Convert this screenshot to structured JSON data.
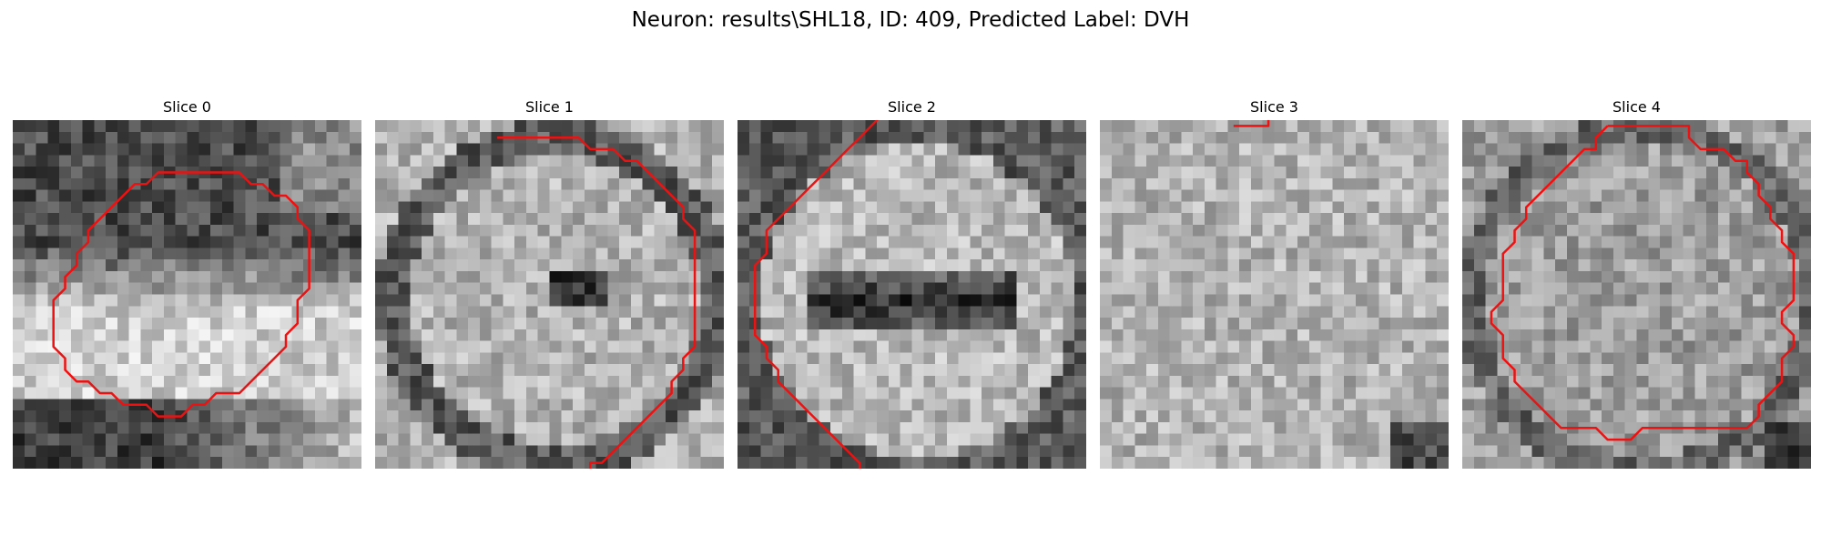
{
  "figure": {
    "title": "Neuron: results\\SHL18, ID: 409, Predicted Label: DVH"
  },
  "panels": [
    {
      "title": "Slice 0",
      "image": "grayscale-slice-0",
      "seed": 11,
      "dark": "top",
      "contour": [
        [
          16.5,
          4.5
        ],
        [
          19.5,
          4.5
        ],
        [
          20.5,
          5.5
        ],
        [
          21.5,
          5.5
        ],
        [
          22.5,
          6.5
        ],
        [
          23.5,
          6.5
        ],
        [
          24.5,
          7.5
        ],
        [
          24.5,
          8.5
        ],
        [
          25.5,
          9.5
        ],
        [
          25.5,
          11.5
        ],
        [
          25.5,
          14.5
        ],
        [
          24.5,
          15.5
        ],
        [
          24.5,
          17.5
        ],
        [
          23.5,
          18.5
        ],
        [
          23.5,
          19.5
        ],
        [
          22.5,
          20.5
        ],
        [
          21.5,
          21.5
        ],
        [
          20.5,
          22.5
        ],
        [
          19.5,
          23.5
        ],
        [
          18.5,
          23.5
        ],
        [
          17.5,
          23.5
        ],
        [
          16.5,
          24.5
        ],
        [
          15.5,
          24.5
        ],
        [
          14.5,
          25.5
        ],
        [
          12.5,
          25.5
        ],
        [
          11.5,
          24.5
        ],
        [
          9.5,
          24.5
        ],
        [
          8.5,
          23.5
        ],
        [
          7.5,
          23.5
        ],
        [
          6.5,
          22.5
        ],
        [
          5.5,
          22.5
        ],
        [
          4.5,
          21.5
        ],
        [
          4.5,
          20.5
        ],
        [
          3.5,
          19.5
        ],
        [
          3.5,
          17.5
        ],
        [
          3.5,
          15.5
        ],
        [
          4.5,
          14.5
        ],
        [
          4.5,
          13.5
        ],
        [
          5.5,
          12.5
        ],
        [
          5.5,
          11.5
        ],
        [
          6.5,
          10.5
        ],
        [
          6.5,
          9.5
        ],
        [
          7.5,
          8.5
        ],
        [
          8.5,
          7.5
        ],
        [
          9.5,
          6.5
        ],
        [
          10.5,
          5.5
        ],
        [
          11.5,
          5.5
        ],
        [
          12.5,
          4.5
        ],
        [
          16.5,
          4.5
        ]
      ]
    },
    {
      "title": "Slice 1",
      "image": "grayscale-slice-1",
      "seed": 23,
      "dark": "center",
      "contour": [
        [
          10.5,
          1.5
        ],
        [
          17.5,
          1.5
        ],
        [
          18.5,
          2.5
        ],
        [
          19.5,
          2.5
        ],
        [
          20.5,
          2.5
        ],
        [
          21.5,
          3.5
        ],
        [
          22.5,
          3.5
        ],
        [
          23.5,
          4.5
        ],
        [
          24.5,
          5.5
        ],
        [
          25.5,
          6.5
        ],
        [
          26.5,
          7.5
        ],
        [
          26.5,
          8.5
        ],
        [
          27.5,
          9.5
        ],
        [
          27.5,
          19.5
        ],
        [
          26.5,
          20.5
        ],
        [
          26.5,
          21.5
        ],
        [
          25.5,
          22.5
        ],
        [
          25.5,
          23.5
        ],
        [
          24.5,
          24.5
        ],
        [
          23.5,
          25.5
        ],
        [
          22.5,
          26.5
        ],
        [
          21.5,
          27.5
        ],
        [
          20.5,
          28.5
        ],
        [
          19.5,
          29.5
        ],
        [
          18.5,
          29.5
        ],
        [
          18.5,
          30.5
        ]
      ]
    },
    {
      "title": "Slice 2",
      "image": "grayscale-slice-2",
      "seed": 37,
      "dark": "band",
      "contour": [
        [
          12.5,
          -0.5
        ],
        [
          11.5,
          0.5
        ],
        [
          10.5,
          1.5
        ],
        [
          9.5,
          2.5
        ],
        [
          8.5,
          3.5
        ],
        [
          7.5,
          4.5
        ],
        [
          6.5,
          5.5
        ],
        [
          5.5,
          6.5
        ],
        [
          4.5,
          7.5
        ],
        [
          3.5,
          8.5
        ],
        [
          2.5,
          9.5
        ],
        [
          2.5,
          11.5
        ],
        [
          1.5,
          12.5
        ],
        [
          1.5,
          18.5
        ],
        [
          2.5,
          19.5
        ],
        [
          2.5,
          20.5
        ],
        [
          3.5,
          21.5
        ],
        [
          3.5,
          22.5
        ],
        [
          4.5,
          23.5
        ],
        [
          5.5,
          24.5
        ],
        [
          6.5,
          25.5
        ],
        [
          7.5,
          26.5
        ],
        [
          8.5,
          27.5
        ],
        [
          9.5,
          28.5
        ],
        [
          10.5,
          29.5
        ],
        [
          10.5,
          30.5
        ]
      ]
    },
    {
      "title": "Slice 3",
      "image": "grayscale-slice-3",
      "seed": 53,
      "dark": "none",
      "contour": [
        [
          11.5,
          0.5
        ],
        [
          14.5,
          0.5
        ],
        [
          14.5,
          -0.5
        ]
      ]
    },
    {
      "title": "Slice 4",
      "image": "grayscale-slice-4",
      "seed": 71,
      "dark": "corner",
      "contour": [
        [
          12.5,
          0.5
        ],
        [
          19.5,
          0.5
        ],
        [
          19.5,
          1.5
        ],
        [
          20.5,
          2.5
        ],
        [
          22.5,
          2.5
        ],
        [
          23.5,
          3.5
        ],
        [
          24.5,
          3.5
        ],
        [
          24.5,
          4.5
        ],
        [
          25.5,
          5.5
        ],
        [
          25.5,
          6.5
        ],
        [
          26.5,
          7.5
        ],
        [
          26.5,
          8.5
        ],
        [
          27.5,
          9.5
        ],
        [
          27.5,
          10.5
        ],
        [
          28.5,
          11.5
        ],
        [
          28.5,
          15.5
        ],
        [
          27.5,
          16.5
        ],
        [
          27.5,
          17.5
        ],
        [
          28.5,
          18.5
        ],
        [
          28.5,
          19.5
        ],
        [
          27.5,
          20.5
        ],
        [
          27.5,
          22.5
        ],
        [
          26.5,
          23.5
        ],
        [
          25.5,
          24.5
        ],
        [
          25.5,
          25.5
        ],
        [
          24.5,
          26.5
        ],
        [
          15.5,
          26.5
        ],
        [
          14.5,
          27.5
        ],
        [
          12.5,
          27.5
        ],
        [
          11.5,
          26.5
        ],
        [
          8.5,
          26.5
        ],
        [
          7.5,
          25.5
        ],
        [
          6.5,
          24.5
        ],
        [
          5.5,
          23.5
        ],
        [
          4.5,
          22.5
        ],
        [
          4.5,
          21.5
        ],
        [
          3.5,
          20.5
        ],
        [
          3.5,
          18.5
        ],
        [
          2.5,
          17.5
        ],
        [
          2.5,
          16.5
        ],
        [
          3.5,
          15.5
        ],
        [
          3.5,
          13.5
        ],
        [
          3.5,
          11.5
        ],
        [
          4.5,
          10.5
        ],
        [
          4.5,
          9.5
        ],
        [
          5.5,
          8.5
        ],
        [
          5.5,
          7.5
        ],
        [
          6.5,
          6.5
        ],
        [
          7.5,
          5.5
        ],
        [
          8.5,
          4.5
        ],
        [
          9.5,
          3.5
        ],
        [
          10.5,
          2.5
        ],
        [
          11.5,
          2.5
        ],
        [
          11.5,
          1.5
        ],
        [
          12.5,
          0.5
        ]
      ]
    }
  ],
  "colors": {
    "contour": "#ee1111",
    "background": "#ffffff"
  }
}
